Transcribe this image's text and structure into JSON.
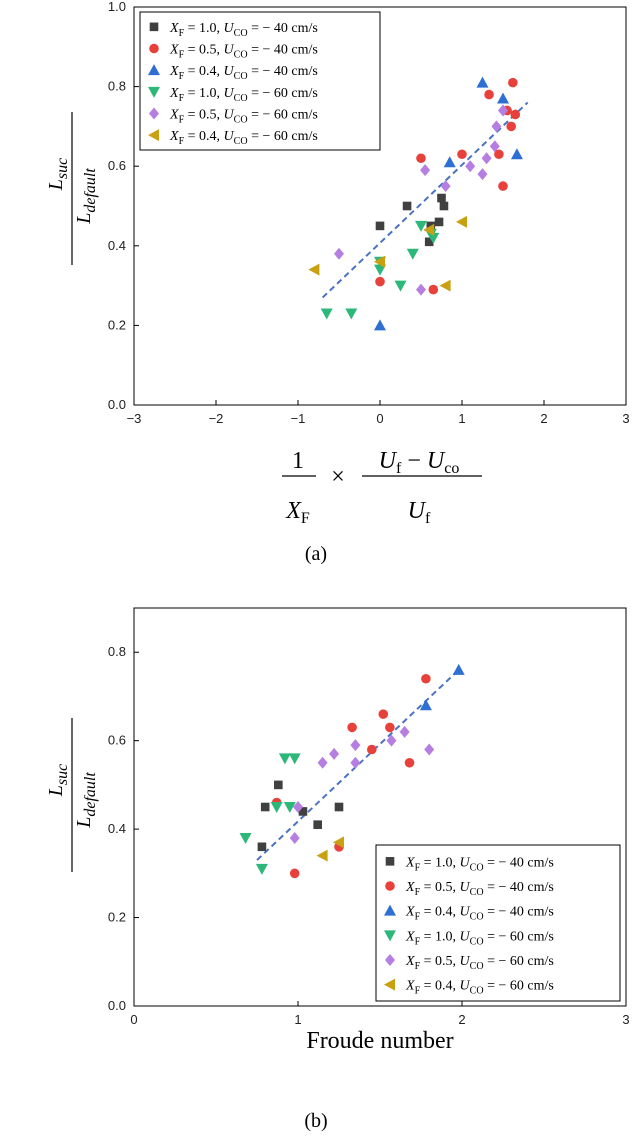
{
  "chart_data": [
    {
      "type": "scatter",
      "panel_label": "(a)",
      "xlabel": "1/X_F × (U_f − U_co)/U_f",
      "ylabel": "L_suc / L_default",
      "xlim": [
        -3,
        3
      ],
      "ylim": [
        0.0,
        1.0
      ],
      "x_ticks": [
        "−3",
        "−2",
        "−1",
        "0",
        "1",
        "2",
        "3"
      ],
      "y_ticks": [
        "0.0",
        "0.2",
        "0.4",
        "0.6",
        "0.8",
        "1.0"
      ],
      "legend_position": "top-left",
      "series": [
        {
          "name": "X_F = 1.0, U_CO = − 40 cm/s",
          "marker": "square",
          "color": "#404040",
          "x": [
            0.0,
            0.33,
            0.6,
            0.62,
            0.72,
            0.75,
            0.78
          ],
          "y": [
            0.45,
            0.5,
            0.41,
            0.45,
            0.46,
            0.52,
            0.5
          ]
        },
        {
          "name": "X_F = 0.5, U_CO = − 40 cm/s",
          "marker": "circle",
          "color": "#e8413c",
          "x": [
            0.0,
            0.5,
            0.65,
            1.0,
            1.33,
            1.45,
            1.5,
            1.55,
            1.6,
            1.62,
            1.65
          ],
          "y": [
            0.31,
            0.62,
            0.29,
            0.63,
            0.78,
            0.63,
            0.55,
            0.74,
            0.7,
            0.81,
            0.73
          ]
        },
        {
          "name": "X_F = 0.4, U_CO = − 40 cm/s",
          "marker": "triangle-up",
          "color": "#2e6fd4",
          "x": [
            0.0,
            0.85,
            1.25,
            1.5,
            1.67
          ],
          "y": [
            0.2,
            0.61,
            0.81,
            0.77,
            0.63
          ]
        },
        {
          "name": "X_F = 1.0, U_CO = − 60 cm/s",
          "marker": "triangle-down",
          "color": "#2db87a",
          "x": [
            -0.65,
            -0.35,
            0.0,
            0.0,
            0.25,
            0.4,
            0.5,
            0.62,
            0.65
          ],
          "y": [
            0.23,
            0.23,
            0.34,
            0.36,
            0.3,
            0.38,
            0.45,
            0.43,
            0.42
          ]
        },
        {
          "name": "X_F = 0.5, U_CO = − 60 cm/s",
          "marker": "diamond",
          "color": "#b57ee0",
          "x": [
            -0.5,
            0.5,
            0.55,
            0.8,
            1.1,
            1.25,
            1.3,
            1.4,
            1.42,
            1.5
          ],
          "y": [
            0.38,
            0.29,
            0.59,
            0.55,
            0.6,
            0.58,
            0.62,
            0.65,
            0.7,
            0.74
          ]
        },
        {
          "name": "X_F = 0.4, U_CO = − 60 cm/s",
          "marker": "triangle-left",
          "color": "#c9a010",
          "x": [
            -0.8,
            0.0,
            0.6,
            0.8,
            1.0
          ],
          "y": [
            0.34,
            0.36,
            0.44,
            0.3,
            0.46
          ]
        }
      ],
      "fit_line": {
        "x": [
          -0.7,
          1.8
        ],
        "y": [
          0.27,
          0.76
        ],
        "style": "dashed",
        "color": "#4a72c4"
      }
    },
    {
      "type": "scatter",
      "panel_label": "(b)",
      "xlabel": "Froude number",
      "ylabel": "L_suc / L_default",
      "xlim": [
        0,
        3
      ],
      "ylim": [
        0.0,
        0.9
      ],
      "x_ticks": [
        "0",
        "1",
        "2",
        "3"
      ],
      "y_ticks": [
        "0.0",
        "0.2",
        "0.4",
        "0.6",
        "0.8"
      ],
      "legend_position": "bottom-right",
      "series": [
        {
          "name": "X_F = 1.0, U_CO = − 40 cm/s",
          "marker": "square",
          "color": "#404040",
          "x": [
            0.78,
            0.8,
            0.88,
            1.03,
            1.12,
            1.25
          ],
          "y": [
            0.36,
            0.45,
            0.5,
            0.44,
            0.41,
            0.45
          ]
        },
        {
          "name": "X_F = 0.5, U_CO = − 40 cm/s",
          "marker": "circle",
          "color": "#e8413c",
          "x": [
            0.87,
            0.98,
            1.25,
            1.33,
            1.45,
            1.52,
            1.56,
            1.68,
            1.78
          ],
          "y": [
            0.46,
            0.3,
            0.36,
            0.63,
            0.58,
            0.66,
            0.63,
            0.55,
            0.74
          ]
        },
        {
          "name": "X_F = 0.4, U_CO = − 40 cm/s",
          "marker": "triangle-up",
          "color": "#2e6fd4",
          "x": [
            1.78,
            1.98
          ],
          "y": [
            0.68,
            0.76
          ]
        },
        {
          "name": "X_F = 1.0, U_CO = − 60 cm/s",
          "marker": "triangle-down",
          "color": "#2db87a",
          "x": [
            0.68,
            0.78,
            0.87,
            0.92,
            0.95,
            0.98
          ],
          "y": [
            0.38,
            0.31,
            0.45,
            0.56,
            0.45,
            0.56
          ]
        },
        {
          "name": "X_F = 0.5, U_CO = − 60 cm/s",
          "marker": "diamond",
          "color": "#b57ee0",
          "x": [
            0.98,
            1.0,
            1.15,
            1.22,
            1.35,
            1.35,
            1.57,
            1.65,
            1.8
          ],
          "y": [
            0.38,
            0.45,
            0.55,
            0.57,
            0.59,
            0.55,
            0.6,
            0.62,
            0.58
          ]
        },
        {
          "name": "X_F = 0.4, U_CO = − 60 cm/s",
          "marker": "triangle-left",
          "color": "#c9a010",
          "x": [
            1.15,
            1.25
          ],
          "y": [
            0.34,
            0.37
          ]
        }
      ],
      "fit_line": {
        "x": [
          0.75,
          1.98
        ],
        "y": [
          0.33,
          0.76
        ],
        "style": "dashed",
        "color": "#4a72c4"
      }
    }
  ]
}
